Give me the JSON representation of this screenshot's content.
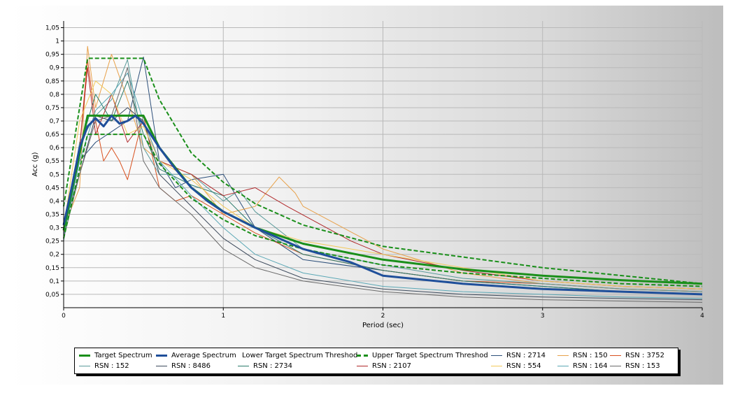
{
  "chart_data": {
    "type": "line",
    "xlabel": "Period (sec)",
    "ylabel": "Acc (g)",
    "xlim": [
      0,
      4
    ],
    "ylim": [
      0,
      1.075
    ],
    "x_ticks": [
      "0",
      "1",
      "2",
      "3",
      "4"
    ],
    "y_ticks": [
      "0,05",
      "0,1",
      "0,15",
      "0,2",
      "0,25",
      "0,3",
      "0,35",
      "0,4",
      "0,45",
      "0,5",
      "0,55",
      "0,6",
      "0,65",
      "0,7",
      "0,75",
      "0,8",
      "0,85",
      "0,9",
      "0,95",
      "1",
      "1,05"
    ],
    "grid": true,
    "legend_position": "bottom",
    "series": [
      {
        "name": "Target Spectrum",
        "color": "#1a8f1a",
        "width": 3,
        "dash": "",
        "points": [
          [
            0,
            0.29
          ],
          [
            0.15,
            0.72
          ],
          [
            0.5,
            0.72
          ],
          [
            0.6,
            0.6
          ],
          [
            0.8,
            0.45
          ],
          [
            1,
            0.36
          ],
          [
            1.2,
            0.3
          ],
          [
            1.5,
            0.24
          ],
          [
            2,
            0.18
          ],
          [
            2.5,
            0.144
          ],
          [
            3,
            0.12
          ],
          [
            3.5,
            0.103
          ],
          [
            4,
            0.09
          ]
        ]
      },
      {
        "name": "Average Spectrum",
        "color": "#1f4f9a",
        "width": 3,
        "dash": "",
        "points": [
          [
            0,
            0.31
          ],
          [
            0.05,
            0.45
          ],
          [
            0.1,
            0.6
          ],
          [
            0.15,
            0.68
          ],
          [
            0.2,
            0.71
          ],
          [
            0.25,
            0.68
          ],
          [
            0.3,
            0.72
          ],
          [
            0.35,
            0.69
          ],
          [
            0.4,
            0.7
          ],
          [
            0.45,
            0.72
          ],
          [
            0.5,
            0.69
          ],
          [
            0.6,
            0.6
          ],
          [
            0.7,
            0.52
          ],
          [
            0.8,
            0.45
          ],
          [
            0.9,
            0.4
          ],
          [
            1,
            0.36
          ],
          [
            1.2,
            0.3
          ],
          [
            1.5,
            0.22
          ],
          [
            1.8,
            0.17
          ],
          [
            2,
            0.12
          ],
          [
            2.5,
            0.09
          ],
          [
            3,
            0.07
          ],
          [
            3.5,
            0.06
          ],
          [
            4,
            0.05
          ]
        ]
      },
      {
        "name": "Lower Target Spectrum Threshod",
        "color": "#1a8f1a",
        "width": 2,
        "dash": "6,3",
        "points": [
          [
            0,
            0.26
          ],
          [
            0.15,
            0.65
          ],
          [
            0.5,
            0.65
          ],
          [
            0.6,
            0.54
          ],
          [
            0.8,
            0.41
          ],
          [
            1,
            0.33
          ],
          [
            1.2,
            0.27
          ],
          [
            1.5,
            0.22
          ],
          [
            2,
            0.16
          ],
          [
            2.5,
            0.13
          ],
          [
            3,
            0.11
          ],
          [
            3.5,
            0.09
          ],
          [
            4,
            0.08
          ]
        ]
      },
      {
        "name": "Upper Target Spectrum Threshod",
        "color": "#1a8f1a",
        "width": 2,
        "dash": "6,3",
        "points": [
          [
            0,
            0.38
          ],
          [
            0.15,
            0.935
          ],
          [
            0.5,
            0.935
          ],
          [
            0.6,
            0.78
          ],
          [
            0.8,
            0.58
          ],
          [
            1,
            0.47
          ],
          [
            1.2,
            0.39
          ],
          [
            1.5,
            0.31
          ],
          [
            2,
            0.23
          ],
          [
            2.5,
            0.19
          ],
          [
            3,
            0.15
          ],
          [
            3.5,
            0.12
          ],
          [
            4,
            0.09
          ]
        ]
      },
      {
        "name": "RSN : 2714",
        "color": "#2d4f7a",
        "width": 1,
        "dash": "",
        "points": [
          [
            0,
            0.27
          ],
          [
            0.1,
            0.55
          ],
          [
            0.2,
            0.62
          ],
          [
            0.3,
            0.66
          ],
          [
            0.4,
            0.7
          ],
          [
            0.5,
            0.94
          ],
          [
            0.6,
            0.55
          ],
          [
            0.7,
            0.45
          ],
          [
            0.8,
            0.48
          ],
          [
            1,
            0.5
          ],
          [
            1.1,
            0.4
          ],
          [
            1.2,
            0.3
          ],
          [
            1.5,
            0.18
          ],
          [
            2,
            0.14
          ],
          [
            2.5,
            0.1
          ],
          [
            3,
            0.08
          ],
          [
            3.5,
            0.06
          ],
          [
            4,
            0.05
          ]
        ]
      },
      {
        "name": "RSN : 150",
        "color": "#e8a14a",
        "width": 1,
        "dash": "",
        "points": [
          [
            0,
            0.3
          ],
          [
            0.1,
            0.45
          ],
          [
            0.15,
            0.98
          ],
          [
            0.2,
            0.75
          ],
          [
            0.3,
            0.95
          ],
          [
            0.4,
            0.78
          ],
          [
            0.5,
            0.6
          ],
          [
            0.6,
            0.55
          ],
          [
            0.8,
            0.5
          ],
          [
            1,
            0.35
          ],
          [
            1.2,
            0.38
          ],
          [
            1.35,
            0.49
          ],
          [
            1.45,
            0.43
          ],
          [
            1.5,
            0.38
          ],
          [
            2,
            0.22
          ],
          [
            2.5,
            0.13
          ],
          [
            3,
            0.09
          ],
          [
            3.5,
            0.07
          ],
          [
            4,
            0.06
          ]
        ]
      },
      {
        "name": "RSN : 3752",
        "color": "#d9501e",
        "width": 1,
        "dash": "",
        "points": [
          [
            0,
            0.28
          ],
          [
            0.1,
            0.6
          ],
          [
            0.15,
            0.93
          ],
          [
            0.2,
            0.7
          ],
          [
            0.25,
            0.55
          ],
          [
            0.3,
            0.6
          ],
          [
            0.35,
            0.55
          ],
          [
            0.4,
            0.48
          ],
          [
            0.5,
            0.72
          ],
          [
            0.6,
            0.45
          ],
          [
            0.7,
            0.4
          ],
          [
            0.8,
            0.42
          ],
          [
            1,
            0.35
          ],
          [
            1.2,
            0.28
          ],
          [
            1.5,
            0.2
          ],
          [
            2,
            0.14
          ],
          [
            2.5,
            0.1
          ],
          [
            3,
            0.09
          ],
          [
            3.5,
            0.07
          ],
          [
            4,
            0.06
          ]
        ]
      },
      {
        "name": "RSN : 152",
        "color": "#5a9a9a",
        "width": 1,
        "dash": "",
        "points": [
          [
            0,
            0.25
          ],
          [
            0.1,
            0.62
          ],
          [
            0.2,
            0.72
          ],
          [
            0.3,
            0.78
          ],
          [
            0.4,
            0.93
          ],
          [
            0.5,
            0.6
          ],
          [
            0.6,
            0.5
          ],
          [
            0.8,
            0.5
          ],
          [
            1,
            0.4
          ],
          [
            1.1,
            0.44
          ],
          [
            1.2,
            0.36
          ],
          [
            1.5,
            0.22
          ],
          [
            2,
            0.16
          ],
          [
            2.5,
            0.11
          ],
          [
            3,
            0.09
          ],
          [
            3.5,
            0.07
          ],
          [
            4,
            0.06
          ]
        ]
      },
      {
        "name": "RSN : 8486",
        "color": "#3d4a5c",
        "width": 1,
        "dash": "",
        "points": [
          [
            0,
            0.3
          ],
          [
            0.1,
            0.5
          ],
          [
            0.2,
            0.72
          ],
          [
            0.3,
            0.7
          ],
          [
            0.4,
            0.75
          ],
          [
            0.5,
            0.7
          ],
          [
            0.6,
            0.5
          ],
          [
            0.8,
            0.38
          ],
          [
            1,
            0.26
          ],
          [
            1.2,
            0.18
          ],
          [
            1.5,
            0.11
          ],
          [
            2,
            0.07
          ],
          [
            2.5,
            0.05
          ],
          [
            3,
            0.04
          ],
          [
            3.5,
            0.035
          ],
          [
            4,
            0.03
          ]
        ]
      },
      {
        "name": "RSN : 2734",
        "color": "#2a7a6a",
        "width": 1,
        "dash": "",
        "points": [
          [
            0,
            0.32
          ],
          [
            0.1,
            0.6
          ],
          [
            0.2,
            0.8
          ],
          [
            0.3,
            0.7
          ],
          [
            0.4,
            0.85
          ],
          [
            0.5,
            0.65
          ],
          [
            0.6,
            0.52
          ],
          [
            0.8,
            0.46
          ],
          [
            1,
            0.42
          ],
          [
            1.2,
            0.3
          ],
          [
            1.5,
            0.2
          ],
          [
            2,
            0.14
          ],
          [
            2.5,
            0.1
          ],
          [
            3,
            0.08
          ],
          [
            3.5,
            0.06
          ],
          [
            4,
            0.05
          ]
        ]
      },
      {
        "name": "RSN : 2107",
        "color": "#b0282a",
        "width": 1,
        "dash": "",
        "points": [
          [
            0,
            0.3
          ],
          [
            0.1,
            0.6
          ],
          [
            0.15,
            0.9
          ],
          [
            0.2,
            0.65
          ],
          [
            0.3,
            0.8
          ],
          [
            0.4,
            0.62
          ],
          [
            0.5,
            0.7
          ],
          [
            0.6,
            0.55
          ],
          [
            0.8,
            0.5
          ],
          [
            1,
            0.42
          ],
          [
            1.2,
            0.45
          ],
          [
            1.4,
            0.38
          ],
          [
            1.8,
            0.25
          ],
          [
            2,
            0.2
          ],
          [
            2.5,
            0.14
          ],
          [
            3,
            0.1
          ],
          [
            3.5,
            0.08
          ],
          [
            4,
            0.07
          ]
        ]
      },
      {
        "name": "RSN : 554",
        "color": "#f2c95a",
        "width": 1,
        "dash": "",
        "points": [
          [
            0,
            0.3
          ],
          [
            0.1,
            0.7
          ],
          [
            0.2,
            0.85
          ],
          [
            0.3,
            0.8
          ],
          [
            0.4,
            0.65
          ],
          [
            0.5,
            0.68
          ],
          [
            0.6,
            0.55
          ],
          [
            0.8,
            0.48
          ],
          [
            1,
            0.38
          ],
          [
            1.2,
            0.3
          ],
          [
            1.5,
            0.25
          ],
          [
            2,
            0.2
          ],
          [
            2.5,
            0.15
          ],
          [
            3,
            0.1
          ],
          [
            3.5,
            0.08
          ],
          [
            4,
            0.07
          ]
        ]
      },
      {
        "name": "RSN : 164",
        "color": "#5aa7b5",
        "width": 1,
        "dash": "",
        "points": [
          [
            0,
            0.27
          ],
          [
            0.1,
            0.55
          ],
          [
            0.2,
            0.74
          ],
          [
            0.3,
            0.8
          ],
          [
            0.4,
            0.88
          ],
          [
            0.5,
            0.7
          ],
          [
            0.6,
            0.55
          ],
          [
            0.8,
            0.42
          ],
          [
            1,
            0.3
          ],
          [
            1.2,
            0.2
          ],
          [
            1.5,
            0.13
          ],
          [
            2,
            0.08
          ],
          [
            2.5,
            0.06
          ],
          [
            3,
            0.05
          ],
          [
            3.5,
            0.04
          ],
          [
            4,
            0.035
          ]
        ]
      },
      {
        "name": "RSN : 153",
        "color": "#6a6a6a",
        "width": 1,
        "dash": "",
        "points": [
          [
            0,
            0.26
          ],
          [
            0.1,
            0.5
          ],
          [
            0.2,
            0.7
          ],
          [
            0.3,
            0.72
          ],
          [
            0.4,
            0.9
          ],
          [
            0.5,
            0.55
          ],
          [
            0.6,
            0.45
          ],
          [
            0.8,
            0.35
          ],
          [
            1,
            0.22
          ],
          [
            1.2,
            0.15
          ],
          [
            1.5,
            0.1
          ],
          [
            2,
            0.06
          ],
          [
            2.5,
            0.04
          ],
          [
            3,
            0.03
          ],
          [
            3.5,
            0.025
          ],
          [
            4,
            0.02
          ]
        ]
      }
    ]
  }
}
